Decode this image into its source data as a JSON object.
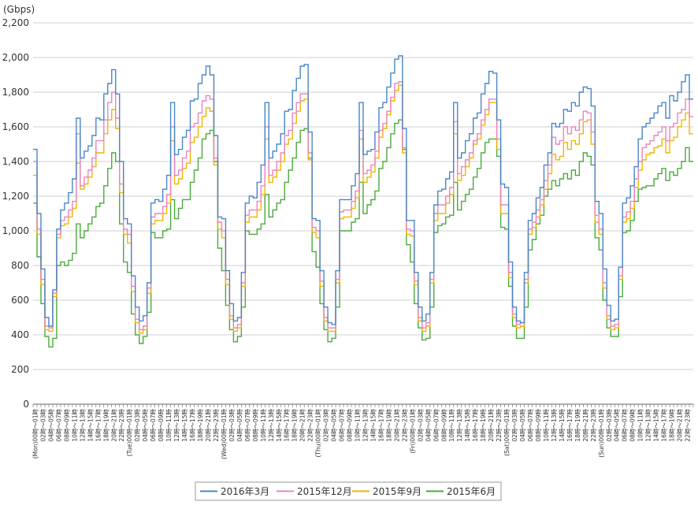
{
  "chart_data": {
    "type": "line",
    "step": true,
    "unit_label": "(Gbps)",
    "ylim": [
      0,
      2200
    ],
    "yticks": [
      "0",
      "200",
      "400",
      "600",
      "800",
      "1,000",
      "1,200",
      "1,400",
      "1,600",
      "1,800",
      "2,000",
      "2,200"
    ],
    "grid": "horizontal",
    "legend_position": "bottom",
    "day_labels": [
      "(Mon)",
      "(Tue)",
      "(Wed)",
      "(Thu)",
      "(Fri)",
      "(Sat)",
      "(Sun)"
    ],
    "hour_labels": [
      "00時～01時",
      "02時～03時",
      "04時～05時",
      "06時～07時",
      "08時～09時",
      "10時～11時",
      "12時～13時",
      "14時～15時",
      "16時～17時",
      "18時～19時",
      "20時～21時",
      "22時～23時"
    ],
    "colors": {
      "2016年3月": "#4a86c5",
      "2015年12月": "#e884c4",
      "2015年9月": "#f2b400",
      "2015年6月": "#4aaa3c"
    },
    "series": [
      {
        "name": "2016年3月",
        "values": [
          1470,
          1100,
          780,
          500,
          450,
          660,
          1010,
          1120,
          1160,
          1220,
          1300,
          1650,
          1420,
          1460,
          1490,
          1550,
          1650,
          1640,
          1790,
          1850,
          1930,
          1790,
          1400,
          1070,
          1040,
          740,
          560,
          480,
          510,
          700,
          1160,
          1180,
          1170,
          1240,
          1320,
          1740,
          1440,
          1470,
          1540,
          1580,
          1750,
          1760,
          1850,
          1900,
          1950,
          1900,
          1550,
          1080,
          1070,
          770,
          580,
          480,
          500,
          760,
          1160,
          1200,
          1190,
          1280,
          1380,
          1740,
          1420,
          1460,
          1500,
          1560,
          1690,
          1700,
          1810,
          1880,
          1950,
          1960,
          1570,
          1070,
          1060,
          770,
          560,
          470,
          460,
          770,
          1180,
          1180,
          1180,
          1260,
          1330,
          1740,
          1440,
          1460,
          1470,
          1570,
          1710,
          1740,
          1830,
          1910,
          1990,
          2010,
          1590,
          1060,
          1060,
          760,
          560,
          480,
          520,
          760,
          1150,
          1230,
          1240,
          1300,
          1340,
          1740,
          1420,
          1450,
          1520,
          1560,
          1650,
          1680,
          1790,
          1850,
          1920,
          1910,
          1640,
          1270,
          1250,
          820,
          560,
          480,
          470,
          760,
          1060,
          1100,
          1190,
          1250,
          1380,
          1450,
          1620,
          1600,
          1620,
          1700,
          1690,
          1740,
          1720,
          1800,
          1830,
          1820,
          1720,
          1170,
          1100,
          780,
          570,
          480,
          490,
          790,
          1160,
          1190,
          1260,
          1370,
          1530,
          1600,
          1620,
          1650,
          1680,
          1720,
          1740,
          1650,
          1780,
          1750,
          1800,
          1860,
          1900,
          1760
        ]
      },
      {
        "name": "2015年12月",
        "values": [
          1400,
          1010,
          720,
          450,
          440,
          640,
          980,
          1060,
          1080,
          1120,
          1170,
          1560,
          1260,
          1310,
          1350,
          1420,
          1520,
          1520,
          1640,
          1740,
          1800,
          1650,
          1270,
          1010,
          980,
          680,
          490,
          430,
          450,
          670,
          1080,
          1100,
          1100,
          1140,
          1210,
          1600,
          1320,
          1350,
          1420,
          1460,
          1600,
          1620,
          1680,
          1750,
          1780,
          1760,
          1420,
          1050,
          1000,
          720,
          510,
          440,
          460,
          700,
          1090,
          1120,
          1120,
          1170,
          1260,
          1600,
          1320,
          1350,
          1400,
          1450,
          1550,
          1580,
          1680,
          1740,
          1790,
          1790,
          1450,
          1020,
          1000,
          710,
          500,
          440,
          440,
          720,
          1110,
          1120,
          1120,
          1170,
          1230,
          1580,
          1330,
          1350,
          1380,
          1460,
          1580,
          1620,
          1690,
          1770,
          1850,
          1860,
          1480,
          1010,
          1000,
          710,
          500,
          440,
          470,
          720,
          1100,
          1150,
          1150,
          1200,
          1250,
          1630,
          1330,
          1370,
          1410,
          1450,
          1520,
          1560,
          1640,
          1700,
          1760,
          1760,
          1530,
          1150,
          1150,
          760,
          520,
          460,
          470,
          720,
          1010,
          1050,
          1120,
          1180,
          1290,
          1380,
          1540,
          1500,
          1520,
          1600,
          1560,
          1600,
          1580,
          1640,
          1690,
          1680,
          1570,
          1090,
          1010,
          700,
          510,
          450,
          460,
          740,
          1080,
          1110,
          1170,
          1300,
          1400,
          1480,
          1500,
          1520,
          1550,
          1570,
          1600,
          1520,
          1600,
          1620,
          1680,
          1700,
          1760,
          1660
        ]
      },
      {
        "name": "2015年9月",
        "values": [
          1320,
          980,
          690,
          430,
          420,
          620,
          960,
          1030,
          1040,
          1080,
          1130,
          1390,
          1240,
          1270,
          1310,
          1370,
          1450,
          1450,
          1560,
          1640,
          1700,
          1590,
          1220,
          980,
          930,
          650,
          470,
          410,
          430,
          640,
          1040,
          1060,
          1060,
          1100,
          1160,
          1520,
          1270,
          1300,
          1360,
          1390,
          1510,
          1540,
          1600,
          1660,
          1710,
          1690,
          1380,
          1010,
          960,
          690,
          490,
          420,
          440,
          680,
          1050,
          1080,
          1080,
          1120,
          1210,
          1530,
          1280,
          1310,
          1350,
          1400,
          1500,
          1530,
          1620,
          1690,
          1750,
          1760,
          1410,
          990,
          960,
          680,
          480,
          420,
          420,
          700,
          1070,
          1080,
          1080,
          1130,
          1190,
          1530,
          1280,
          1310,
          1340,
          1420,
          1540,
          1590,
          1670,
          1750,
          1810,
          1840,
          1450,
          980,
          970,
          690,
          480,
          420,
          450,
          700,
          1060,
          1100,
          1100,
          1160,
          1210,
          1560,
          1290,
          1320,
          1370,
          1420,
          1500,
          1530,
          1610,
          1670,
          1740,
          1740,
          1470,
          1100,
          1100,
          730,
          500,
          440,
          450,
          700,
          980,
          1020,
          1080,
          1150,
          1240,
          1330,
          1440,
          1410,
          1430,
          1510,
          1470,
          1520,
          1500,
          1560,
          1630,
          1640,
          1500,
          1050,
          980,
          670,
          490,
          430,
          440,
          720,
          1050,
          1070,
          1130,
          1250,
          1350,
          1410,
          1440,
          1450,
          1480,
          1490,
          1530,
          1450,
          1520,
          1540,
          1600,
          1640,
          1680,
          1560
        ]
      },
      {
        "name": "2015年6月",
        "values": [
          1160,
          850,
          580,
          390,
          330,
          380,
          800,
          820,
          800,
          830,
          870,
          1040,
          960,
          1000,
          1040,
          1080,
          1140,
          1160,
          1260,
          1360,
          1450,
          1400,
          1040,
          820,
          760,
          520,
          400,
          350,
          390,
          530,
          990,
          960,
          960,
          1000,
          1010,
          1180,
          1070,
          1130,
          1180,
          1180,
          1280,
          1350,
          1420,
          1530,
          1560,
          1580,
          1400,
          900,
          770,
          570,
          430,
          360,
          390,
          560,
          1000,
          980,
          980,
          1010,
          1040,
          1210,
          1080,
          1120,
          1160,
          1180,
          1280,
          1350,
          1420,
          1510,
          1580,
          1590,
          1420,
          880,
          790,
          580,
          430,
          360,
          380,
          560,
          1000,
          1000,
          1000,
          1050,
          1070,
          1280,
          1100,
          1150,
          1180,
          1230,
          1360,
          1400,
          1480,
          1560,
          1620,
          1640,
          1470,
          920,
          820,
          580,
          440,
          370,
          380,
          560,
          990,
          1030,
          1040,
          1080,
          1090,
          1280,
          1120,
          1170,
          1210,
          1240,
          1310,
          1360,
          1450,
          1510,
          1530,
          1530,
          1430,
          1020,
          1010,
          680,
          450,
          380,
          380,
          560,
          890,
          950,
          1040,
          1090,
          1200,
          1240,
          1290,
          1260,
          1300,
          1330,
          1300,
          1350,
          1320,
          1400,
          1450,
          1430,
          1380,
          960,
          890,
          600,
          440,
          390,
          390,
          620,
          990,
          1000,
          1060,
          1170,
          1240,
          1250,
          1260,
          1260,
          1300,
          1330,
          1360,
          1290,
          1340,
          1320,
          1360,
          1400,
          1480,
          1400
        ]
      }
    ]
  }
}
